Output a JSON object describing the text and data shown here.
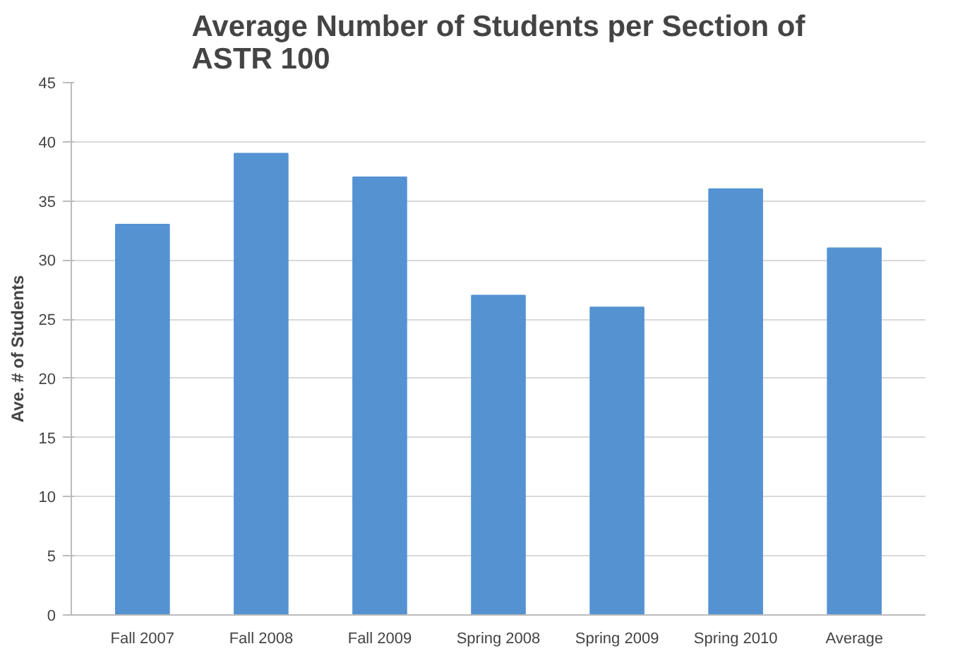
{
  "chart_data": {
    "type": "bar",
    "title": "Average Number of Students per Section of\nASTR 100",
    "ylabel": "Ave. # of Students",
    "categories": [
      "Fall 2007",
      "Fall 2008",
      "Fall 2009",
      "Spring 2008",
      "Spring 2009",
      "Spring 2010",
      "Average"
    ],
    "values": [
      33,
      39,
      37,
      27,
      26,
      36,
      31
    ],
    "color": "#5592d2",
    "ylim": [
      0,
      45
    ],
    "yticks": [
      0,
      5,
      10,
      15,
      20,
      25,
      30,
      35,
      40,
      45
    ],
    "grid": "y"
  }
}
